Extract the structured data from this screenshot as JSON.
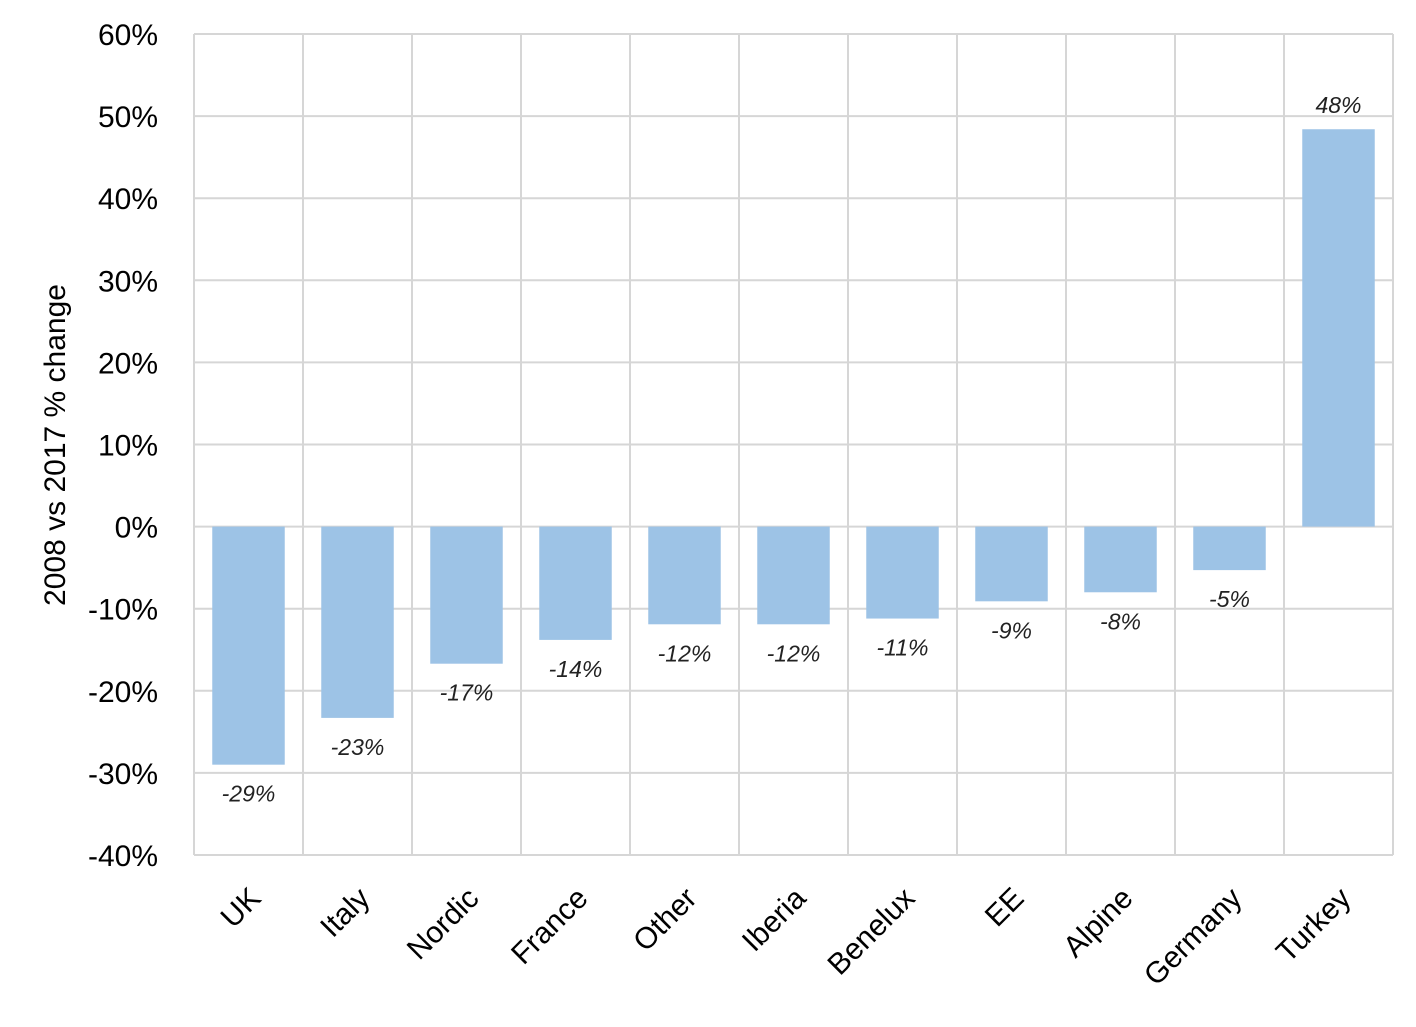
{
  "chart_data": {
    "type": "bar",
    "categories": [
      "UK",
      "Italy",
      "Nordic",
      "France",
      "Other",
      "Iberia",
      "Benelux",
      "EE",
      "Alpine",
      "Germany",
      "Turkey"
    ],
    "values": [
      -29,
      -23.3,
      -16.7,
      -13.8,
      -11.9,
      -11.9,
      -11.2,
      -9.1,
      -8.0,
      -5.3,
      48.4
    ],
    "data_labels": [
      "-29%",
      "-23%",
      "-17%",
      "-14%",
      "-12%",
      "-12%",
      "-11%",
      "-9%",
      "-8%",
      "-5%",
      "48%"
    ],
    "ylabel": "2008 vs 2017 % change",
    "xlabel": "",
    "title": "",
    "ylim": [
      -40,
      60
    ],
    "yticks": [
      60,
      50,
      40,
      30,
      20,
      10,
      0,
      -10,
      -20,
      -30,
      -40
    ],
    "ytick_labels": [
      "60%",
      "50%",
      "40%",
      "30%",
      "20%",
      "10%",
      "0%",
      "-10%",
      "-20%",
      "-30%",
      "-40%"
    ],
    "grid": true,
    "legend": "none",
    "bar_color": "#9dc3e6",
    "grid_color": "#d6d6d6"
  }
}
